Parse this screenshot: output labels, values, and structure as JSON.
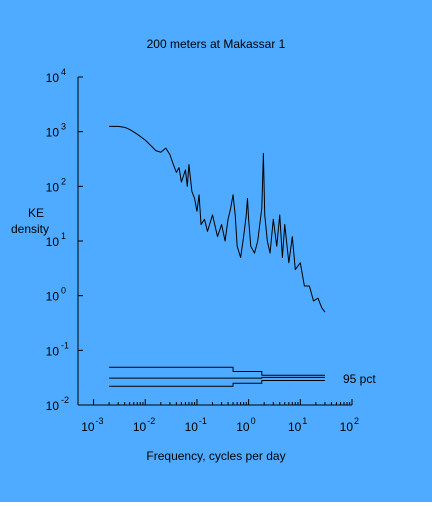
{
  "chart_data": {
    "type": "line",
    "title": "200 meters at Makassar 1",
    "xlabel": "Frequency, cycles per day",
    "ylabel": [
      "KE",
      "density"
    ],
    "log_x": true,
    "log_y": true,
    "background": "#4fabff",
    "color": "#000000",
    "xlim": [
      0.0005,
      100
    ],
    "ylim": [
      0.01,
      10000
    ],
    "xticks": [
      {
        "value": 0.001,
        "label": "10",
        "exponent": "-3"
      },
      {
        "value": 0.01,
        "label": "10",
        "exponent": "-2"
      },
      {
        "value": 0.1,
        "label": "10",
        "exponent": "-1"
      },
      {
        "value": 1,
        "label": "10",
        "exponent": "0"
      },
      {
        "value": 10,
        "label": "10",
        "exponent": "1"
      },
      {
        "value": 100,
        "label": "10",
        "exponent": "2"
      }
    ],
    "xminorticks": [
      0.002,
      0.003,
      0.004,
      0.005,
      0.006,
      0.007,
      0.008,
      0.009,
      0.02,
      0.03,
      0.04,
      0.05,
      0.06,
      0.07,
      0.08,
      0.09,
      0.2,
      0.3,
      0.4,
      0.5,
      0.6,
      0.7,
      0.8,
      0.9,
      2,
      3,
      4,
      5,
      6,
      7,
      8,
      9,
      20,
      30,
      40,
      50,
      60,
      70,
      80,
      90
    ],
    "yticks": [
      {
        "value": 0.01,
        "label": "10",
        "exponent": "-2"
      },
      {
        "value": 0.1,
        "label": "10",
        "exponent": "-1"
      },
      {
        "value": 1,
        "label": "10",
        "exponent": "0"
      },
      {
        "value": 10,
        "label": "10",
        "exponent": "1"
      },
      {
        "value": 100,
        "label": "10",
        "exponent": "2"
      },
      {
        "value": 1000,
        "label": "10",
        "exponent": "3"
      },
      {
        "value": 10000,
        "label": "10",
        "exponent": "4"
      }
    ],
    "spectrum": {
      "x": [
        0.002,
        0.003,
        0.004,
        0.005,
        0.007,
        0.01,
        0.013,
        0.016,
        0.02,
        0.025,
        0.03,
        0.035,
        0.04,
        0.045,
        0.05,
        0.06,
        0.065,
        0.07,
        0.08,
        0.09,
        0.1,
        0.11,
        0.12,
        0.14,
        0.16,
        0.2,
        0.25,
        0.3,
        0.35,
        0.4,
        0.45,
        0.5,
        0.55,
        0.6,
        0.7,
        0.8,
        0.9,
        0.95,
        1.0,
        1.1,
        1.3,
        1.5,
        1.8,
        1.93,
        2.05,
        2.3,
        2.6,
        3.0,
        3.5,
        4,
        4.5,
        5,
        6,
        7,
        8,
        10,
        12,
        15,
        18,
        22,
        26,
        30
      ],
      "values": [
        1250,
        1250,
        1200,
        1100,
        900,
        700,
        550,
        450,
        420,
        500,
        380,
        250,
        180,
        220,
        120,
        200,
        100,
        250,
        80,
        60,
        35,
        70,
        20,
        25,
        15,
        30,
        12,
        20,
        10,
        25,
        40,
        70,
        30,
        8,
        5,
        12,
        30,
        60,
        25,
        8,
        6,
        10,
        40,
        400,
        30,
        10,
        6,
        25,
        8,
        30,
        5,
        20,
        4,
        12,
        3,
        4,
        1.5,
        1.5,
        0.8,
        0.9,
        0.6,
        0.5
      ]
    },
    "confidence": [
      {
        "x": [
          0.002,
          0.5,
          0.5,
          1.8,
          1.8,
          30
        ],
        "values": [
          0.049,
          0.049,
          0.041,
          0.041,
          0.035,
          0.035
        ]
      },
      {
        "x": [
          0.002,
          1.8,
          1.8,
          30
        ],
        "values": [
          0.031,
          0.031,
          0.032,
          0.032
        ]
      },
      {
        "x": [
          0.002,
          0.5,
          0.5,
          1.8,
          1.8,
          30
        ],
        "values": [
          0.022,
          0.022,
          0.025,
          0.025,
          0.028,
          0.028
        ]
      }
    ],
    "annotation": "95 pct"
  }
}
